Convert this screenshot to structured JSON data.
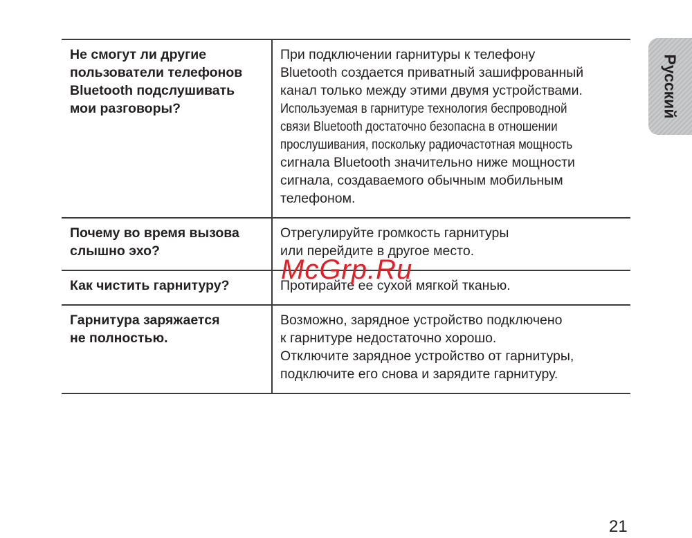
{
  "side_tab": "Русский",
  "faq": [
    {
      "q": [
        "Не смогут ли другие",
        "пользователи телефонов",
        "Bluetooth подслушивать",
        "мои разговоры?"
      ],
      "a": [
        "При подключении гарнитуры к телефону",
        "Bluetooth создается приватный зашифрованный",
        "канал только между этими двумя устройствами."
      ],
      "a_cond": [
        "Используемая в гарнитуре технология беспроводной",
        "связи Bluetooth достаточно безопасна в отношении",
        "прослушивания, поскольку радиочастотная мощность"
      ],
      "a_tail": [
        "сигнала Bluetooth значительно ниже мощности",
        "сигнала, создаваемого обычным мобильным",
        "телефоном."
      ]
    },
    {
      "q": [
        "Почему во время вызова",
        "слышно эхо?"
      ],
      "a": [
        "Отрегулируйте громкость гарнитуры",
        "или перейдите в другое место."
      ]
    },
    {
      "q": [
        "Как чистить гарнитуру?"
      ],
      "a": [
        "Протирайте ее сухой мягкой тканью."
      ]
    },
    {
      "q": [
        "Гарнитура заряжается",
        "не полностью."
      ],
      "a": [
        "Возможно, зарядное устройство подключено",
        "к гарнитуре недостаточно хорошо.",
        "Отключите зарядное устройство от гарнитуры,",
        "подключите его снова и зарядите гарнитуру."
      ]
    }
  ],
  "watermark": "McGrp.Ru",
  "page_number": "21",
  "colors": {
    "watermark": "#e31e24",
    "tab": "#c9cacc"
  }
}
